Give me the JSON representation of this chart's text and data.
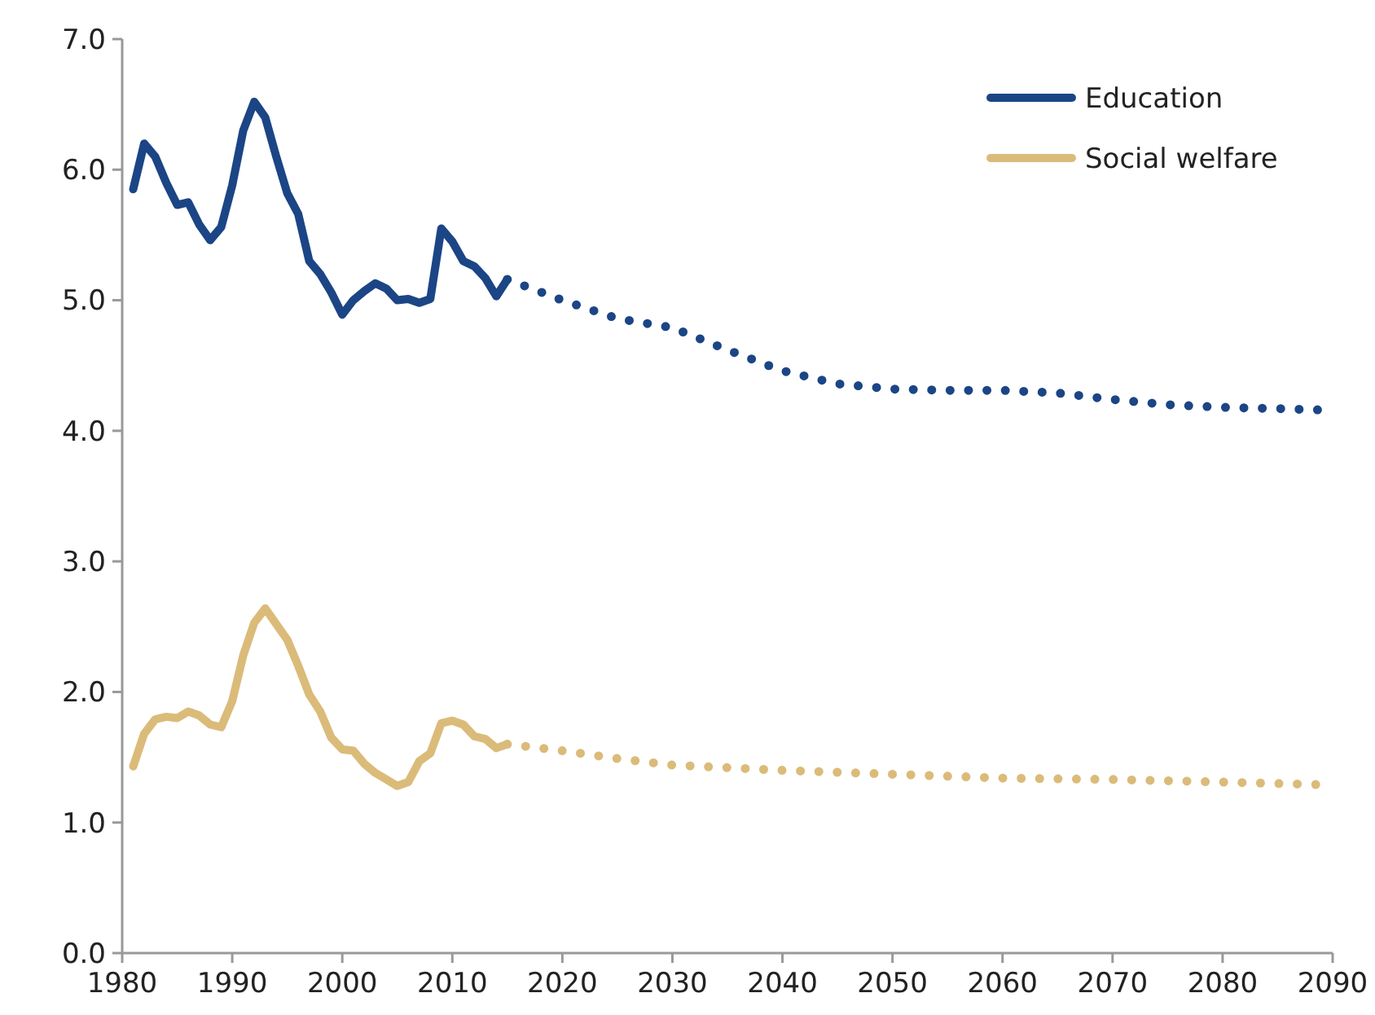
{
  "chart_data": {
    "type": "line",
    "legend": "top right",
    "grid": false,
    "xlim": [
      1980,
      2090
    ],
    "xticks": [
      1980,
      1990,
      2000,
      2010,
      2020,
      2030,
      2040,
      2050,
      2060,
      2070,
      2080,
      2090
    ],
    "ylim": [
      0,
      7
    ],
    "yticks": [
      {
        "value": 0,
        "label": "0.0"
      },
      {
        "value": 1,
        "label": "1.0"
      },
      {
        "value": 2,
        "label": "2.0"
      },
      {
        "value": 3,
        "label": "3.0"
      },
      {
        "value": 4,
        "label": "4.0"
      },
      {
        "value": 5,
        "label": "5.0"
      },
      {
        "value": 6,
        "label": "6.0"
      },
      {
        "value": 7,
        "label": "7.0"
      }
    ],
    "series": [
      {
        "name": "Education",
        "color": "#1b4585",
        "line_style": "solid",
        "x": [
          1981,
          1982,
          1983,
          1984,
          1985,
          1986,
          1987,
          1988,
          1989,
          1990,
          1991,
          1992,
          1993,
          1994,
          1995,
          1996,
          1997,
          1998,
          1999,
          2000,
          2001,
          2002,
          2003,
          2004,
          2005,
          2006,
          2007,
          2008,
          2009,
          2010,
          2011,
          2012,
          2013,
          2014,
          2015
        ],
        "values": [
          5.85,
          6.2,
          6.1,
          5.9,
          5.73,
          5.75,
          5.58,
          5.46,
          5.56,
          5.88,
          6.3,
          6.52,
          6.4,
          6.1,
          5.82,
          5.66,
          5.3,
          5.2,
          5.06,
          4.89,
          5.0,
          5.07,
          5.13,
          5.09,
          5.0,
          5.01,
          4.98,
          5.01,
          5.55,
          5.45,
          5.3,
          5.26,
          5.17,
          5.03,
          5.16
        ]
      },
      {
        "name": "Social welfare",
        "color": "#dbbb79",
        "line_style": "solid",
        "x": [
          1981,
          1982,
          1983,
          1984,
          1985,
          1986,
          1987,
          1988,
          1989,
          1990,
          1991,
          1992,
          1993,
          1994,
          1995,
          1996,
          1997,
          1998,
          1999,
          2000,
          2001,
          2002,
          2003,
          2004,
          2005,
          2006,
          2007,
          2008,
          2009,
          2010,
          2011,
          2012,
          2013,
          2014,
          2015
        ],
        "values": [
          1.43,
          1.68,
          1.79,
          1.81,
          1.8,
          1.85,
          1.82,
          1.75,
          1.73,
          1.93,
          2.28,
          2.53,
          2.64,
          2.52,
          2.4,
          2.2,
          1.98,
          1.85,
          1.65,
          1.56,
          1.55,
          1.45,
          1.38,
          1.33,
          1.28,
          1.31,
          1.47,
          1.53,
          1.76,
          1.78,
          1.75,
          1.66,
          1.64,
          1.57,
          1.6
        ]
      },
      {
        "color": "#1b4585",
        "line_style": "dotted",
        "x": [
          2015,
          2020,
          2025,
          2030,
          2035,
          2040,
          2045,
          2050,
          2055,
          2060,
          2065,
          2070,
          2075,
          2080,
          2085,
          2089
        ],
        "values": [
          5.16,
          5.0,
          4.86,
          4.79,
          4.62,
          4.46,
          4.36,
          4.32,
          4.31,
          4.31,
          4.29,
          4.24,
          4.2,
          4.18,
          4.17,
          4.16
        ]
      },
      {
        "color": "#dbbb79",
        "line_style": "dotted",
        "x": [
          2015,
          2020,
          2025,
          2030,
          2040,
          2050,
          2060,
          2070,
          2080,
          2089
        ],
        "values": [
          1.6,
          1.55,
          1.49,
          1.44,
          1.4,
          1.37,
          1.34,
          1.33,
          1.31,
          1.29
        ]
      }
    ]
  }
}
